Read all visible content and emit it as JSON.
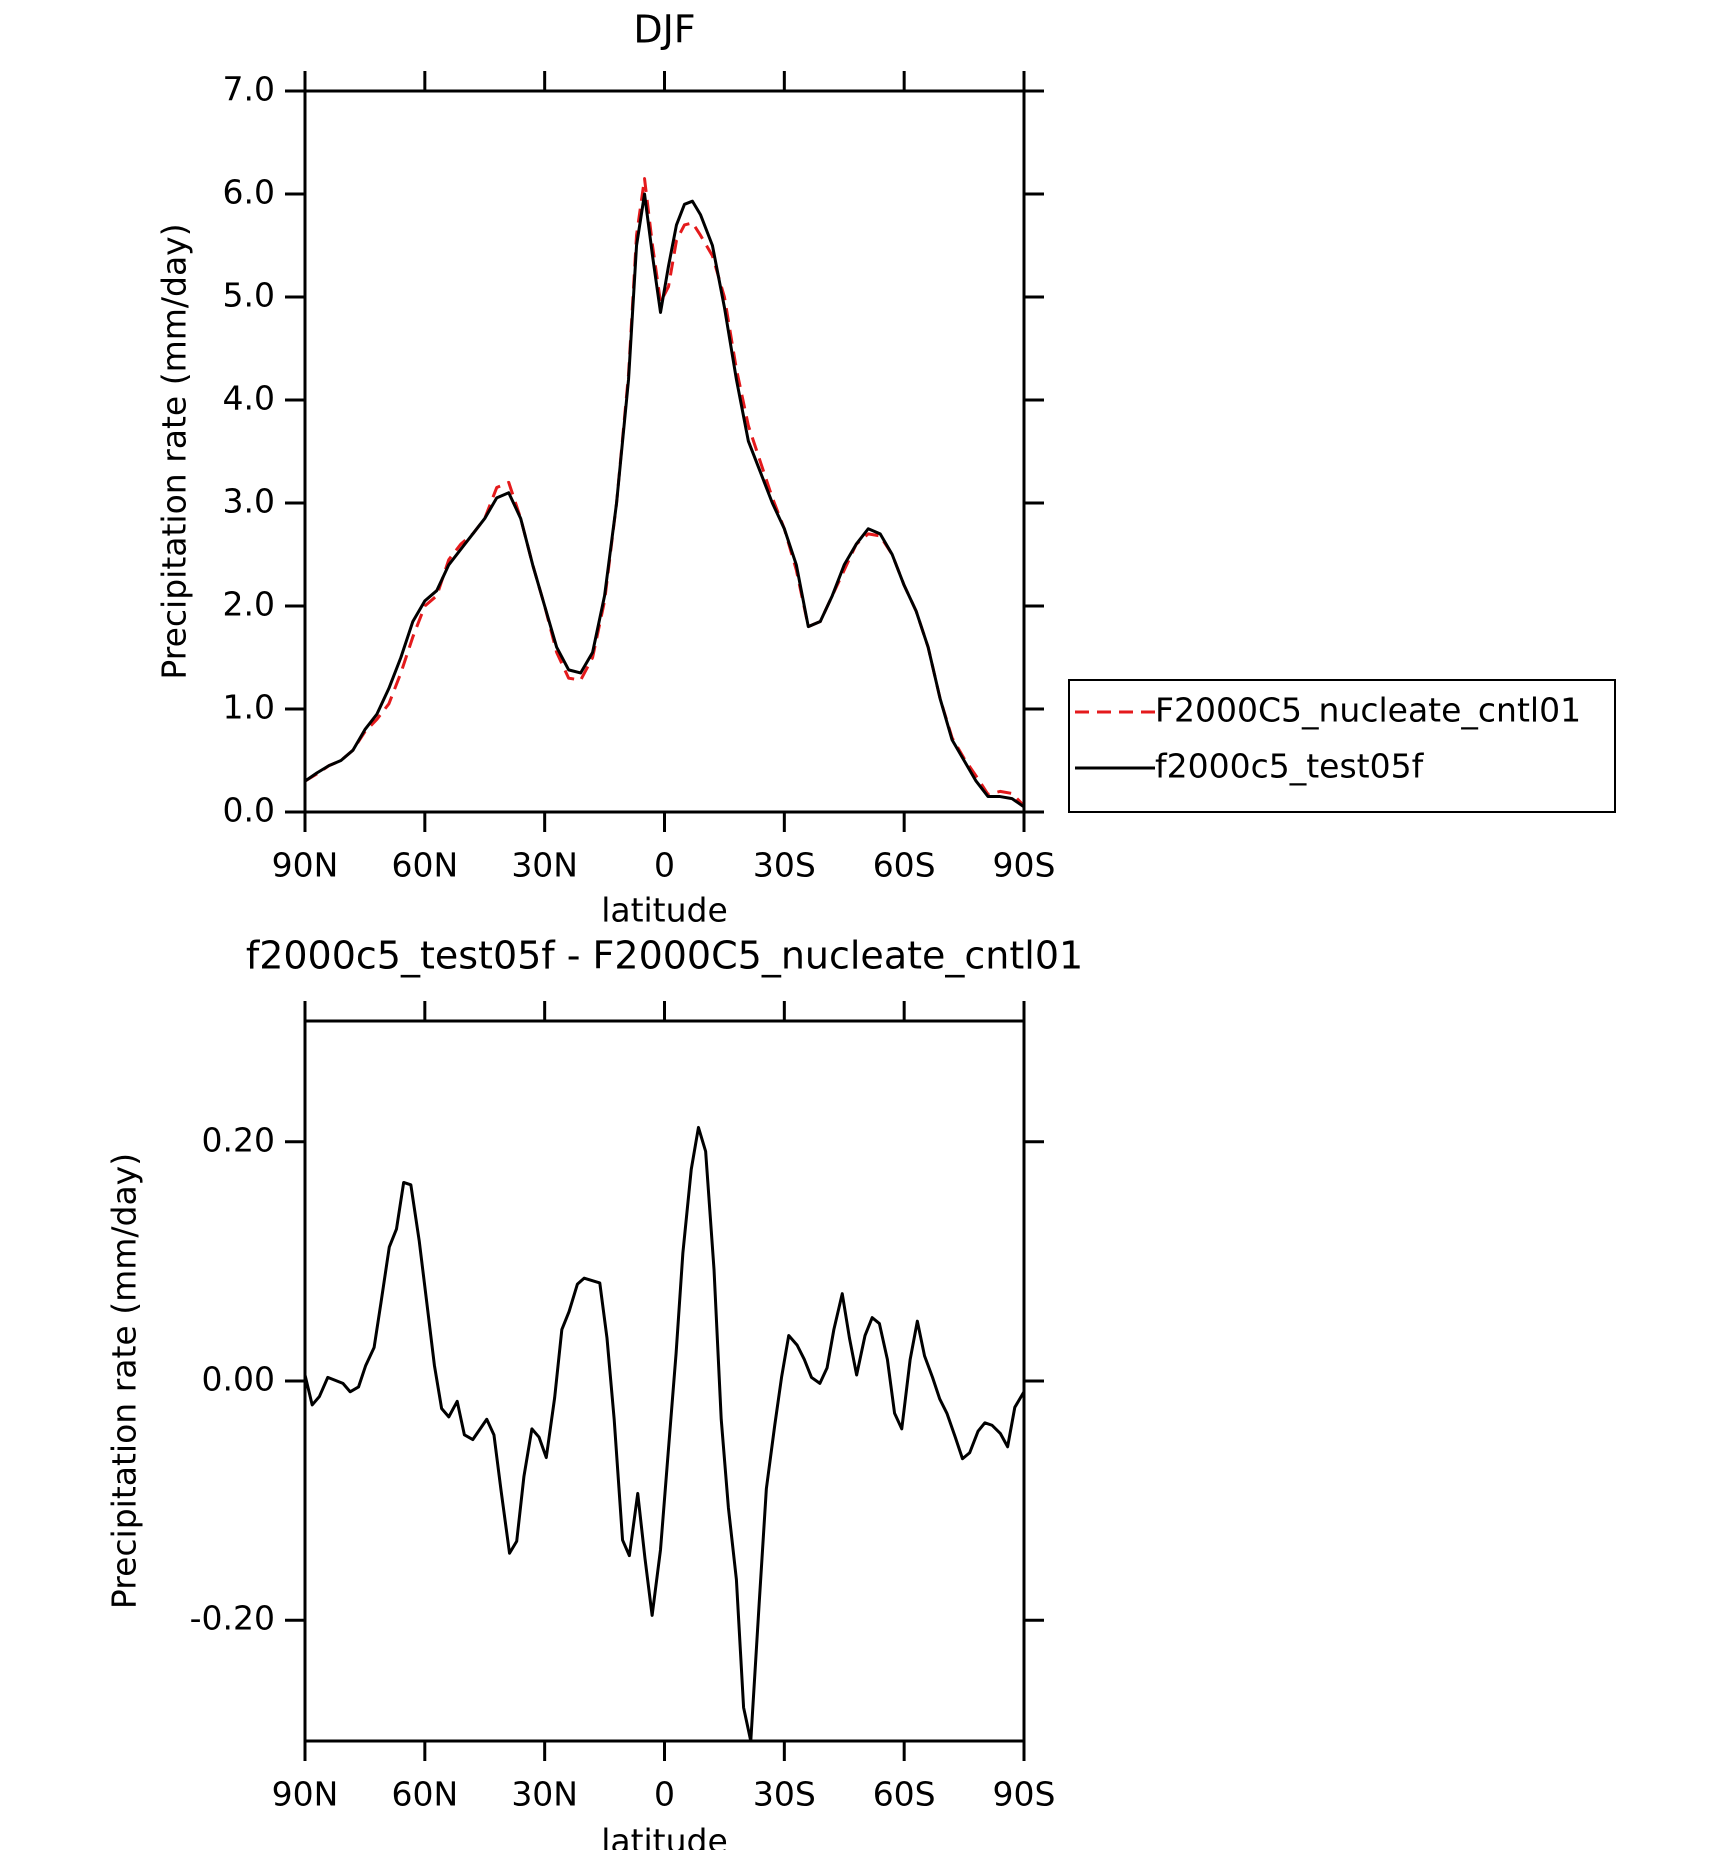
{
  "chart_data": [
    {
      "type": "line",
      "title": "DJF",
      "xlabel": "latitude",
      "ylabel": "Precipitation rate (mm/day)",
      "x": [
        90,
        87,
        84,
        81,
        78,
        75,
        72,
        69,
        66,
        63,
        60,
        57,
        54,
        51,
        48,
        45,
        42,
        39,
        36,
        33,
        30,
        27,
        24,
        21,
        18,
        15,
        12,
        9,
        7,
        5,
        3,
        1,
        -1,
        -3,
        -5,
        -7,
        -9,
        -12,
        -15,
        -18,
        -21,
        -24,
        -27,
        -30,
        -33,
        -36,
        -39,
        -42,
        -45,
        -48,
        -51,
        -54,
        -57,
        -60,
        -63,
        -66,
        -69,
        -72,
        -75,
        -78,
        -81,
        -84,
        -87,
        -90
      ],
      "series": [
        {
          "name": "F2000C5_nucleate_cntl01",
          "color": "#e41a1c",
          "style": "dashed",
          "values": [
            0.3,
            0.37,
            0.45,
            0.5,
            0.6,
            0.78,
            0.9,
            1.05,
            1.35,
            1.7,
            2.0,
            2.1,
            2.45,
            2.6,
            2.7,
            2.85,
            3.15,
            3.2,
            2.85,
            2.4,
            2.0,
            1.55,
            1.3,
            1.28,
            1.5,
            2.05,
            3.0,
            4.25,
            5.6,
            6.15,
            5.5,
            4.95,
            5.1,
            5.55,
            5.7,
            5.72,
            5.6,
            5.4,
            5.0,
            4.3,
            3.75,
            3.4,
            3.05,
            2.75,
            2.35,
            1.8,
            1.85,
            2.1,
            2.35,
            2.6,
            2.7,
            2.68,
            2.5,
            2.2,
            1.95,
            1.6,
            1.1,
            0.72,
            0.52,
            0.35,
            0.17,
            0.2,
            0.18,
            0.06
          ]
        },
        {
          "name": "f2000c5_test05f",
          "color": "#000000",
          "style": "solid",
          "values": [
            0.3,
            0.38,
            0.45,
            0.5,
            0.6,
            0.8,
            0.95,
            1.2,
            1.5,
            1.85,
            2.05,
            2.15,
            2.4,
            2.55,
            2.7,
            2.85,
            3.05,
            3.1,
            2.85,
            2.4,
            2.0,
            1.6,
            1.38,
            1.35,
            1.55,
            2.1,
            3.0,
            4.2,
            5.5,
            6.0,
            5.4,
            4.85,
            5.3,
            5.7,
            5.9,
            5.93,
            5.8,
            5.5,
            4.9,
            4.2,
            3.6,
            3.3,
            3.0,
            2.75,
            2.4,
            1.8,
            1.85,
            2.1,
            2.4,
            2.6,
            2.75,
            2.7,
            2.5,
            2.2,
            1.95,
            1.6,
            1.1,
            0.7,
            0.5,
            0.3,
            0.15,
            0.15,
            0.13,
            0.05
          ]
        }
      ],
      "xlim": [
        90,
        -90
      ],
      "xticks": [
        {
          "value": 90,
          "label": "90N"
        },
        {
          "value": 60,
          "label": "60N"
        },
        {
          "value": 30,
          "label": "30N"
        },
        0,
        {
          "value": -30,
          "label": "30S"
        },
        {
          "value": -60,
          "label": "60S"
        },
        {
          "value": -90,
          "label": "90S"
        }
      ],
      "ylim": [
        0,
        7
      ],
      "yticks": [
        {
          "value": 0,
          "label": "0.0"
        },
        {
          "value": 1,
          "label": "1.0"
        },
        {
          "value": 2,
          "label": "2.0"
        },
        {
          "value": 3,
          "label": "3.0"
        },
        {
          "value": 4,
          "label": "4.0"
        },
        {
          "value": 5,
          "label": "5.0"
        },
        {
          "value": 6,
          "label": "6.0"
        },
        {
          "value": 7,
          "label": "7.0"
        }
      ],
      "legend": "outside-right",
      "grid": false
    },
    {
      "type": "line",
      "title": "f2000c5_test05f - F2000C5_nucleate_cntl01",
      "xlabel": "latitude",
      "ylabel": "Precipitation rate (mm/day)",
      "x": [
        90,
        88.2,
        86.4,
        84.3,
        80.5,
        78.7,
        76.6,
        74.8,
        72.7,
        71,
        68.9,
        67.1,
        65.3,
        63.5,
        61.4,
        59.6,
        57.6,
        55.8,
        54,
        51.9,
        50.1,
        48,
        44.5,
        42.7,
        40.9,
        38.8,
        37,
        35.2,
        33.2,
        31.4,
        29.6,
        27.5,
        25.7,
        23.9,
        21.8,
        20.1,
        16.2,
        14.4,
        12.6,
        10.5,
        8.8,
        6.7,
        4.9,
        3.1,
        1,
        -0.8,
        -2.9,
        -4.6,
        -6.7,
        -8.5,
        -10.3,
        -12.4,
        -14.2,
        -16,
        -18,
        -19.8,
        -21.6,
        -23.7,
        -25.5,
        -27.6,
        -29.3,
        -31.1,
        -33.2,
        -35,
        -36.8,
        -38.9,
        -40.7,
        -42.4,
        -44.5,
        -46.3,
        -48.1,
        -50.2,
        -52,
        -53.8,
        -55.8,
        -57.6,
        -59.4,
        -61.5,
        -63.3,
        -65.1,
        -67.1,
        -68.9,
        -70.7,
        -72.8,
        -74.6,
        -76.4,
        -78.5,
        -80.2,
        -82,
        -84.1,
        -85.9,
        -87.7,
        -90
      ],
      "series": [
        {
          "name": "f2000c5_test05f - F2000C5_nucleate_cntl01",
          "color": "#000000",
          "style": "solid",
          "values": [
            0.005,
            -0.02,
            -0.013,
            0.003,
            -0.002,
            -0.009,
            -0.005,
            0.013,
            0.028,
            0.065,
            0.112,
            0.127,
            0.166,
            0.164,
            0.117,
            0.068,
            0.013,
            -0.023,
            -0.03,
            -0.017,
            -0.045,
            -0.049,
            -0.032,
            -0.045,
            -0.092,
            -0.144,
            -0.134,
            -0.08,
            -0.04,
            -0.047,
            -0.064,
            -0.014,
            0.043,
            0.058,
            0.081,
            0.086,
            0.082,
            0.036,
            -0.032,
            -0.133,
            -0.146,
            -0.094,
            -0.148,
            -0.196,
            -0.141,
            -0.065,
            0.023,
            0.107,
            0.177,
            0.212,
            0.192,
            0.093,
            -0.032,
            -0.106,
            -0.166,
            -0.273,
            -0.301,
            -0.186,
            -0.09,
            -0.037,
            0.003,
            0.038,
            0.03,
            0.018,
            0.003,
            -0.002,
            0.011,
            0.043,
            0.073,
            0.036,
            0.005,
            0.038,
            0.053,
            0.048,
            0.018,
            -0.027,
            -0.04,
            0.018,
            0.05,
            0.021,
            0.003,
            -0.015,
            -0.027,
            -0.047,
            -0.065,
            -0.06,
            -0.042,
            -0.035,
            -0.037,
            -0.044,
            -0.055,
            -0.022,
            -0.009
          ]
        }
      ],
      "xlim": [
        90,
        -90
      ],
      "xticks": [
        {
          "value": 90,
          "label": "90N"
        },
        {
          "value": 60,
          "label": "60N"
        },
        {
          "value": 30,
          "label": "30N"
        },
        0,
        {
          "value": -30,
          "label": "30S"
        },
        {
          "value": -60,
          "label": "60S"
        },
        {
          "value": -90,
          "label": "90S"
        }
      ],
      "ylim": [
        -0.301,
        0.301
      ],
      "yticks": [
        {
          "value": -0.2,
          "label": "-0.20"
        },
        {
          "value": 0,
          "label": "0.00"
        },
        {
          "value": 0.2,
          "label": "0.20"
        }
      ],
      "legend": "none",
      "grid": false
    }
  ]
}
